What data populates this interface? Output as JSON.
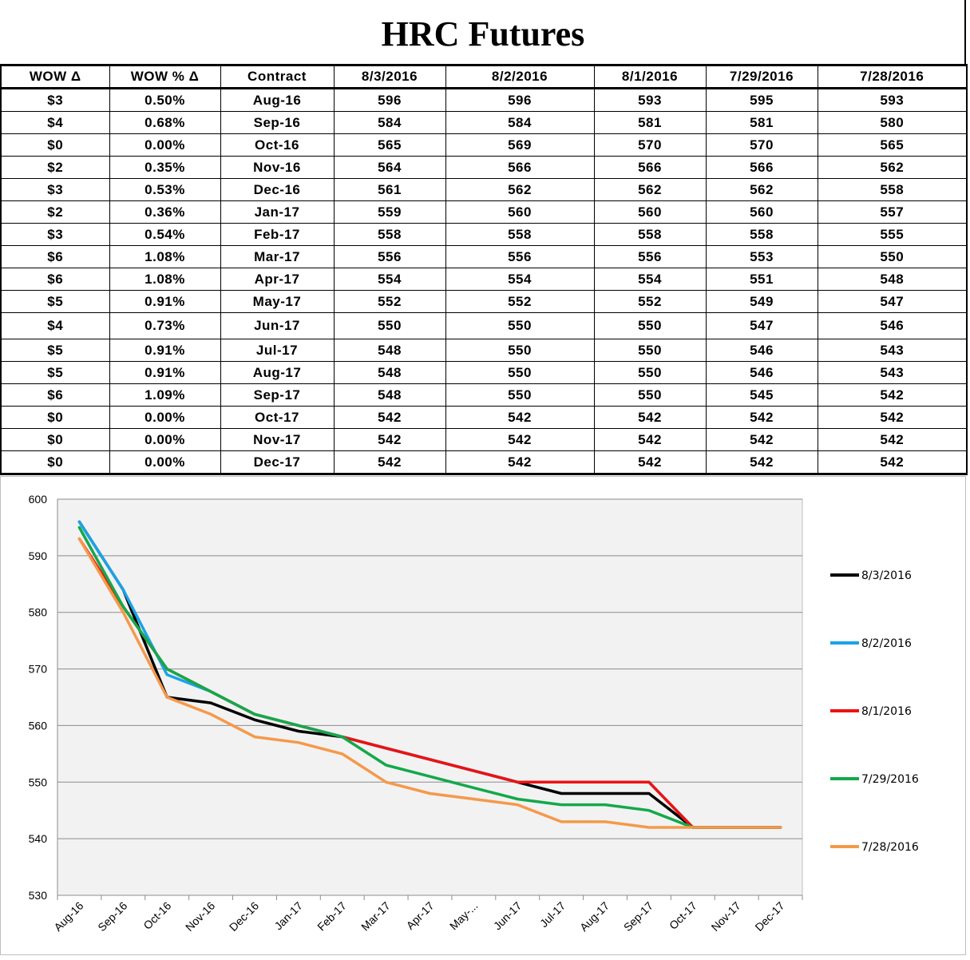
{
  "title": "HRC Futures",
  "table": {
    "headers": [
      "WOW Δ",
      "WOW % Δ",
      "Contract",
      "8/3/2016",
      "8/2/2016",
      "8/1/2016",
      "7/29/2016",
      "7/28/2016"
    ],
    "rows": [
      [
        "$3",
        "0.50%",
        "Aug-16",
        "596",
        "596",
        "593",
        "595",
        "593"
      ],
      [
        "$4",
        "0.68%",
        "Sep-16",
        "584",
        "584",
        "581",
        "581",
        "580"
      ],
      [
        "$0",
        "0.00%",
        "Oct-16",
        "565",
        "569",
        "570",
        "570",
        "565"
      ],
      [
        "$2",
        "0.35%",
        "Nov-16",
        "564",
        "566",
        "566",
        "566",
        "562"
      ],
      [
        "$3",
        "0.53%",
        "Dec-16",
        "561",
        "562",
        "562",
        "562",
        "558"
      ],
      [
        "$2",
        "0.36%",
        "Jan-17",
        "559",
        "560",
        "560",
        "560",
        "557"
      ],
      [
        "$3",
        "0.54%",
        "Feb-17",
        "558",
        "558",
        "558",
        "558",
        "555"
      ],
      [
        "$6",
        "1.08%",
        "Mar-17",
        "556",
        "556",
        "556",
        "553",
        "550"
      ],
      [
        "$6",
        "1.08%",
        "Apr-17",
        "554",
        "554",
        "554",
        "551",
        "548"
      ],
      [
        "$5",
        "0.91%",
        "May-17",
        "552",
        "552",
        "552",
        "549",
        "547"
      ],
      [
        "$4",
        "0.73%",
        "Jun-17",
        "550",
        "550",
        "550",
        "547",
        "546"
      ],
      [
        "$5",
        "0.91%",
        "Jul-17",
        "548",
        "550",
        "550",
        "546",
        "543"
      ],
      [
        "$5",
        "0.91%",
        "Aug-17",
        "548",
        "550",
        "550",
        "546",
        "543"
      ],
      [
        "$6",
        "1.09%",
        "Sep-17",
        "548",
        "550",
        "550",
        "545",
        "542"
      ],
      [
        "$0",
        "0.00%",
        "Oct-17",
        "542",
        "542",
        "542",
        "542",
        "542"
      ],
      [
        "$0",
        "0.00%",
        "Nov-17",
        "542",
        "542",
        "542",
        "542",
        "542"
      ],
      [
        "$0",
        "0.00%",
        "Dec-17",
        "542",
        "542",
        "542",
        "542",
        "542"
      ]
    ]
  },
  "chart_data": {
    "type": "line",
    "categories": [
      "Aug-16",
      "Sep-16",
      "Oct-16",
      "Nov-16",
      "Dec-16",
      "Jan-17",
      "Feb-17",
      "Mar-17",
      "Apr-17",
      "May-...",
      "Jun-17",
      "Jul-17",
      "Aug-17",
      "Sep-17",
      "Oct-17",
      "Nov-17",
      "Dec-17"
    ],
    "ylim": [
      530,
      600
    ],
    "yticks": [
      530,
      540,
      550,
      560,
      570,
      580,
      590,
      600
    ],
    "grid": true,
    "legend": "right",
    "series": [
      {
        "name": "8/3/2016",
        "color": "#000000",
        "values": [
          596,
          584,
          565,
          564,
          561,
          559,
          558,
          556,
          554,
          552,
          550,
          548,
          548,
          548,
          542,
          542,
          542
        ]
      },
      {
        "name": "8/2/2016",
        "color": "#1aa3e8",
        "values": [
          596,
          584,
          569,
          566,
          562,
          560,
          558,
          556,
          554,
          552,
          550,
          550,
          550,
          550,
          542,
          542,
          542
        ]
      },
      {
        "name": "8/1/2016",
        "color": "#ee1111",
        "values": [
          593,
          581,
          570,
          566,
          562,
          560,
          558,
          556,
          554,
          552,
          550,
          550,
          550,
          550,
          542,
          542,
          542
        ]
      },
      {
        "name": "7/29/2016",
        "color": "#14a84a",
        "values": [
          595,
          581,
          570,
          566,
          562,
          560,
          558,
          553,
          551,
          549,
          547,
          546,
          546,
          545,
          542,
          542,
          542
        ]
      },
      {
        "name": "7/28/2016",
        "color": "#f5994a",
        "values": [
          593,
          580,
          565,
          562,
          558,
          557,
          555,
          550,
          548,
          547,
          546,
          543,
          543,
          542,
          542,
          542,
          542
        ]
      }
    ]
  }
}
